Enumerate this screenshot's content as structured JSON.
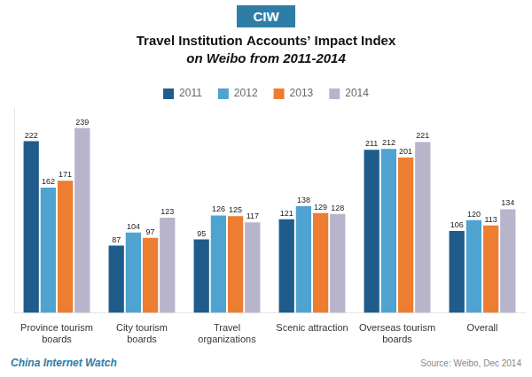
{
  "chart_data": {
    "type": "bar",
    "title": "Travel Institution Accounts’ Impact Index",
    "subtitle": "on Weibo from 2011-2014",
    "categories": [
      "Province tourism\nboards",
      "City tourism\nboards",
      "Travel\norganizations",
      "Scenic attraction",
      "Overseas tourism\nboards",
      "Overall"
    ],
    "series": [
      {
        "name": "2011",
        "color": "#1f5c8b",
        "values": [
          222,
          87,
          95,
          121,
          211,
          106
        ]
      },
      {
        "name": "2012",
        "color": "#4fa3d1",
        "values": [
          162,
          104,
          126,
          138,
          212,
          120
        ]
      },
      {
        "name": "2013",
        "color": "#ed7d31",
        "values": [
          171,
          97,
          125,
          129,
          201,
          113
        ]
      },
      {
        "name": "2014",
        "color": "#b8b4cc",
        "values": [
          239,
          123,
          117,
          128,
          221,
          134
        ]
      }
    ],
    "ylim": [
      0,
      265
    ],
    "grid": false,
    "legend": "top",
    "data_labels": true,
    "tick_labels": "x",
    "annotations": [
      {
        "text": "CIW",
        "color": "#2e7da6"
      },
      {
        "text": "China Internet Watch",
        "color": "#2e7da6"
      },
      {
        "text": "Source: Weibo, Dec 2014",
        "color": "#888888"
      }
    ]
  }
}
